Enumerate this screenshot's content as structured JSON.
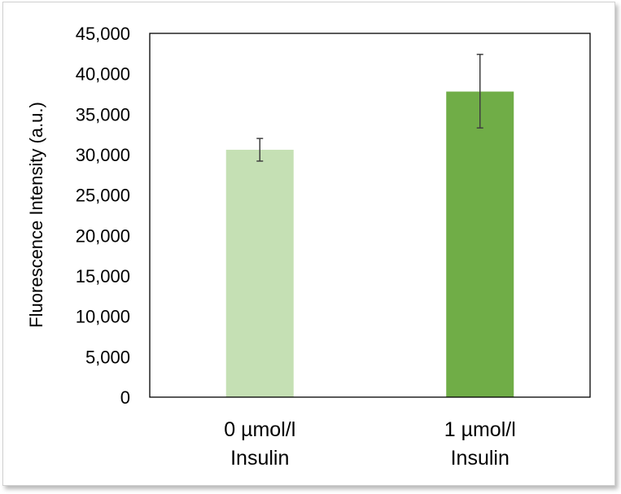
{
  "chart_data": {
    "type": "bar",
    "title": "",
    "xlabel": "",
    "ylabel": "Fluorescence Intensity  (a.u.)",
    "categories": [
      [
        "0 µmol/l",
        "Insulin"
      ],
      [
        "1 µmol/l",
        "Insulin"
      ]
    ],
    "values": [
      30600,
      37800
    ],
    "error_low": [
      29200,
      33300
    ],
    "error_high": [
      32000,
      42400
    ],
    "bar_colors": [
      "#c5e0b4",
      "#70ad47"
    ],
    "error_bar_color": "#404040",
    "ylim": [
      0,
      45000
    ],
    "yticks": [
      0,
      5000,
      10000,
      15000,
      20000,
      25000,
      30000,
      35000,
      40000,
      45000
    ],
    "ytick_labels": [
      "0",
      "5,000",
      "10,000",
      "15,000",
      "20,000",
      "25,000",
      "30,000",
      "35,000",
      "40,000",
      "45,000"
    ],
    "grid": false,
    "legend": "none"
  }
}
